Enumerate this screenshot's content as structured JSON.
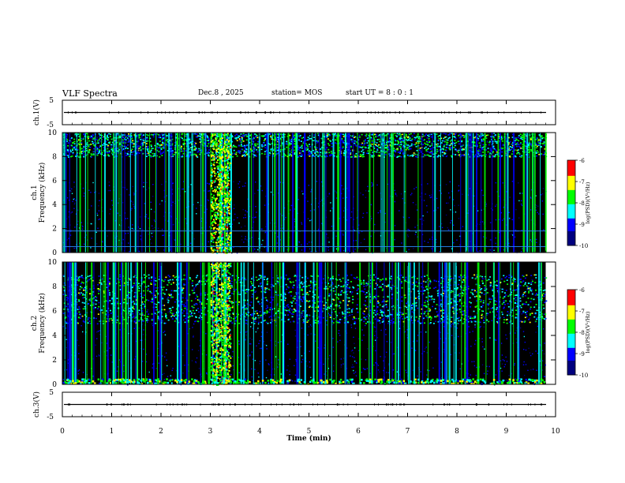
{
  "header": {
    "title": "VLF Spectra",
    "date": "Dec.8 , 2025",
    "station": "station= MOS",
    "start": "start UT = 8 : 0 : 1"
  },
  "colors": {
    "background": "#000000",
    "scale": [
      "#00007f",
      "#0000ff",
      "#00ffff",
      "#00ff00",
      "#ffff00",
      "#ff0000",
      "#ffffff"
    ]
  },
  "chart_data": [
    {
      "type": "line",
      "name": "waveform-ch1",
      "ylabel": "ch.1(V)",
      "ylim": [
        -5,
        5
      ],
      "yticks": [
        "5",
        "-5"
      ],
      "x": [
        0,
        10
      ],
      "values": [
        0,
        0
      ]
    },
    {
      "type": "heatmap",
      "name": "spectrogram-ch1",
      "ylabel_top": "ch.1",
      "ylabel": "Frequency (kHz)",
      "ylim": [
        0,
        10
      ],
      "yticks": [
        "0",
        "2",
        "4",
        "6",
        "8",
        "10"
      ],
      "colorbar": {
        "label": "log(PSD)(V²/Hz)",
        "ticks": [
          "-6",
          "-7",
          "-8",
          "-9",
          "-10"
        ],
        "range": [
          -10,
          -6
        ]
      },
      "data_end_min": 9.8,
      "bright_band_khz": [
        8.0,
        10.0
      ],
      "hum_lines_khz": [
        0.5,
        1.8
      ],
      "strong_activity_min": [
        3.0,
        3.4
      ]
    },
    {
      "type": "heatmap",
      "name": "spectrogram-ch2",
      "ylabel_top": "ch.2",
      "ylabel": "Frequency (kHz)",
      "ylim": [
        0,
        10
      ],
      "yticks": [
        "0",
        "2",
        "4",
        "6",
        "8",
        "10"
      ],
      "colorbar": {
        "label": "log(PSD)(V²/Hz)",
        "ticks": [
          "-6",
          "-7",
          "-8",
          "-9",
          "-10"
        ],
        "range": [
          -10,
          -6
        ]
      },
      "data_end_min": 9.8,
      "bright_band_khz": [
        5.0,
        9.0
      ],
      "strong_activity_min": [
        3.0,
        3.4
      ]
    },
    {
      "type": "line",
      "name": "waveform-ch3",
      "ylabel": "ch.3(V)",
      "ylim": [
        -5,
        5
      ],
      "yticks": [
        "5",
        "-5"
      ],
      "x": [
        0,
        10
      ],
      "values": [
        0,
        0
      ]
    }
  ],
  "xaxis": {
    "label": "Time (min)",
    "ticks": [
      "0",
      "1",
      "2",
      "3",
      "4",
      "5",
      "6",
      "7",
      "8",
      "9",
      "10"
    ],
    "range": [
      0,
      10
    ]
  }
}
